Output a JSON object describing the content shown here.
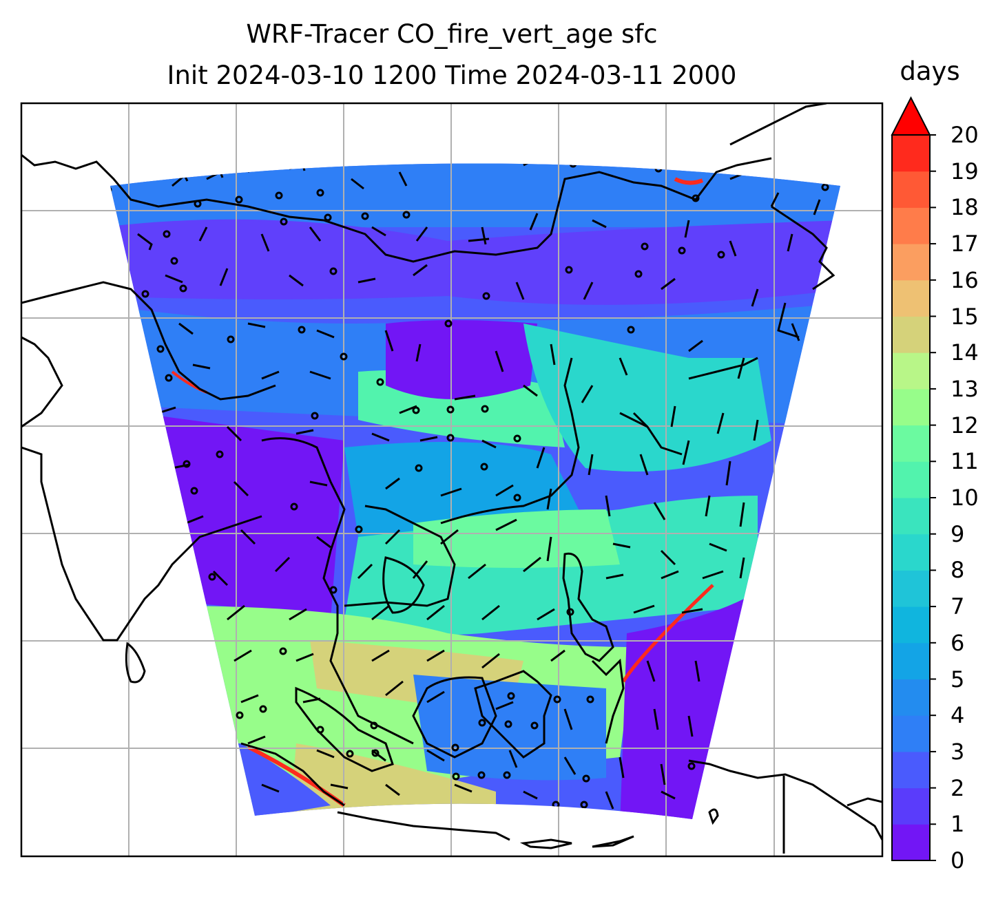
{
  "title": {
    "line1": "WRF-Tracer CO_fire_vert_age sfc",
    "line2": "Init 2024-03-10 1200 Time 2024-03-11 2000"
  },
  "colorbar": {
    "unit": "days",
    "ticks": [
      "0",
      "1",
      "2",
      "3",
      "4",
      "5",
      "6",
      "7",
      "8",
      "9",
      "10",
      "11",
      "12",
      "13",
      "14",
      "15",
      "16",
      "17",
      "18",
      "19",
      "20"
    ],
    "colors": [
      "#7216f5",
      "#5a3cfb",
      "#4a5bfd",
      "#2f7ff6",
      "#238cef",
      "#13a4e6",
      "#10b5de",
      "#1fc4d8",
      "#2ad7cc",
      "#3ae4be",
      "#52f3ad",
      "#6bfaa0",
      "#97fd8a",
      "#b8f688",
      "#d5d27a",
      "#eec173",
      "#fb9e60",
      "#ff7c4a",
      "#ff5935",
      "#ff2a1d",
      "#ff0000"
    ],
    "extend": "max"
  },
  "map": {
    "field": "CO_fire_vert_age",
    "level": "sfc",
    "gridlines": true,
    "coastlines": true,
    "wind_barbs": true
  }
}
